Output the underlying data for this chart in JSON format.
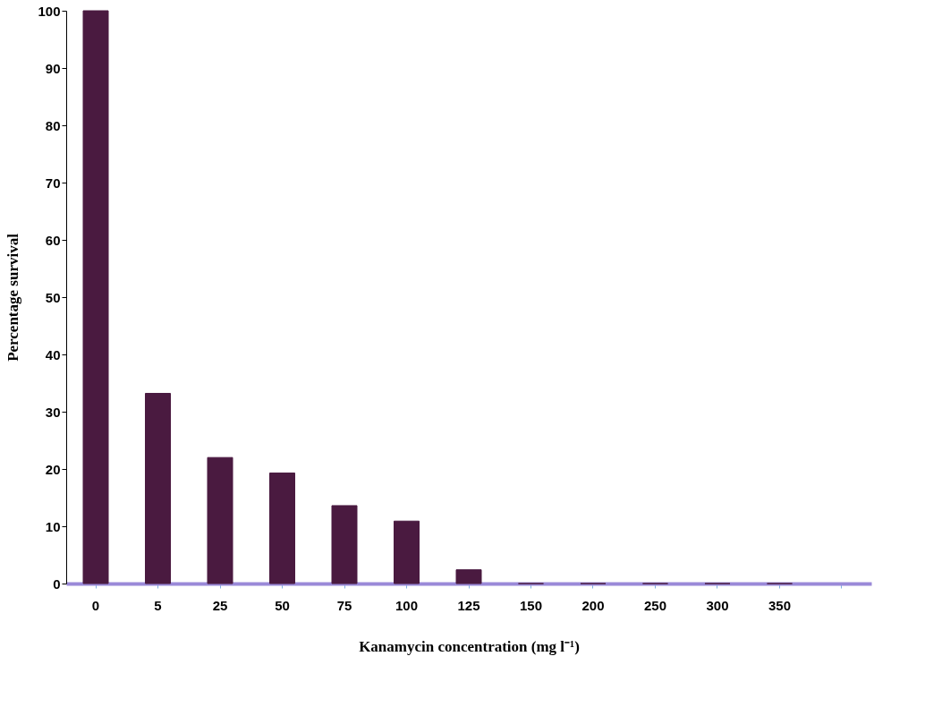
{
  "chart_data": {
    "type": "bar",
    "xlabel": "Kanamycin concentration (mg l⁻¹)",
    "ylabel": "Percentage survival",
    "categories": [
      "0",
      "5",
      "25",
      "50",
      "75",
      "100",
      "125",
      "150",
      "200",
      "250",
      "300",
      "350",
      null
    ],
    "values": [
      100,
      33.2,
      22,
      19.3,
      13.6,
      10.9,
      2.4,
      0,
      0,
      0,
      0,
      0,
      null
    ],
    "color": "#4a1a40",
    "ylim": [
      0,
      100
    ],
    "yticks": [
      0,
      10,
      20,
      30,
      40,
      50,
      60,
      70,
      80,
      90,
      100
    ],
    "grid": false
  }
}
